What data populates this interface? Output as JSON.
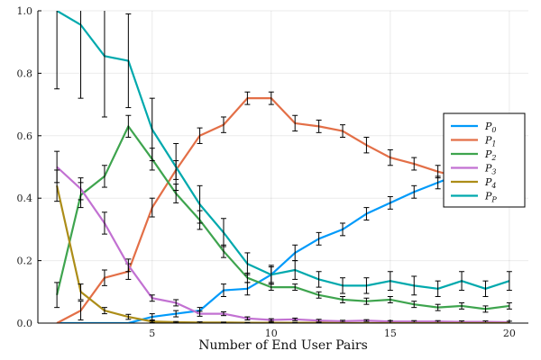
{
  "chart_data": {
    "type": "line",
    "title": "",
    "xlabel": "Number of End User Pairs",
    "ylabel": "",
    "xlim": [
      0.2,
      20.8
    ],
    "ylim": [
      0,
      1
    ],
    "xticks": [
      5,
      10,
      15,
      20
    ],
    "yticks": [
      0.0,
      0.2,
      0.4,
      0.6,
      0.8,
      1.0
    ],
    "ytick_labels": [
      "0.0",
      "0.2",
      "0.4",
      "0.6",
      "0.8",
      "1.0"
    ],
    "grid": true,
    "legend_position": "right",
    "x": [
      1,
      2,
      3,
      4,
      5,
      6,
      7,
      8,
      9,
      10,
      11,
      12,
      13,
      14,
      15,
      16,
      17,
      18,
      19,
      20
    ],
    "series": [
      {
        "name": "P",
        "sub": "0",
        "color": "#009AFA",
        "values": [
          0.0,
          0.0,
          0.0,
          0.0,
          0.02,
          0.03,
          0.04,
          0.105,
          0.11,
          0.155,
          0.225,
          0.27,
          0.3,
          0.35,
          0.385,
          0.42,
          0.45,
          0.48,
          0.505,
          0.535
        ],
        "errors": [
          0.0,
          0.0,
          0.0,
          0.0,
          0.01,
          0.01,
          0.01,
          0.02,
          0.02,
          0.025,
          0.025,
          0.02,
          0.02,
          0.02,
          0.02,
          0.02,
          0.02,
          0.02,
          0.02,
          0.015
        ]
      },
      {
        "name": "P",
        "sub": "1",
        "color": "#E36F47",
        "values": [
          0.0,
          0.04,
          0.145,
          0.165,
          0.37,
          0.49,
          0.6,
          0.635,
          0.72,
          0.72,
          0.64,
          0.63,
          0.615,
          0.57,
          0.53,
          0.51,
          0.485,
          0.465,
          0.445,
          0.41
        ],
        "errors": [
          0.0,
          0.03,
          0.025,
          0.025,
          0.03,
          0.03,
          0.025,
          0.025,
          0.02,
          0.02,
          0.025,
          0.02,
          0.02,
          0.025,
          0.025,
          0.02,
          0.02,
          0.02,
          0.02,
          0.02
        ]
      },
      {
        "name": "P",
        "sub": "2",
        "color": "#3EA44E",
        "values": [
          0.09,
          0.41,
          0.47,
          0.63,
          0.525,
          0.415,
          0.33,
          0.23,
          0.145,
          0.115,
          0.115,
          0.09,
          0.075,
          0.07,
          0.075,
          0.06,
          0.05,
          0.055,
          0.045,
          0.055
        ],
        "errors": [
          0.04,
          0.04,
          0.035,
          0.035,
          0.035,
          0.03,
          0.03,
          0.02,
          0.015,
          0.01,
          0.01,
          0.01,
          0.01,
          0.01,
          0.01,
          0.01,
          0.01,
          0.01,
          0.01,
          0.01
        ]
      },
      {
        "name": "P",
        "sub": "3",
        "color": "#C271D2",
        "values": [
          0.5,
          0.43,
          0.32,
          0.185,
          0.08,
          0.065,
          0.03,
          0.03,
          0.015,
          0.01,
          0.012,
          0.008,
          0.006,
          0.008,
          0.005,
          0.005,
          0.005,
          0.004,
          0.004,
          0.003
        ],
        "errors": [
          0.05,
          0.035,
          0.035,
          0.02,
          0.01,
          0.01,
          0.008,
          0.006,
          0.005,
          0.004,
          0.004,
          0.004,
          0.003,
          0.003,
          0.003,
          0.003,
          0.003,
          0.003,
          0.003,
          0.003
        ]
      },
      {
        "name": "P",
        "sub": "4",
        "color": "#AC8D18",
        "values": [
          0.44,
          0.1,
          0.04,
          0.02,
          0.005,
          0.003,
          0.002,
          0.002,
          0.001,
          0.001,
          0.001,
          0.001,
          0.0,
          0.0,
          0.0,
          0.0,
          0.0,
          0.0,
          0.0,
          0.0
        ],
        "errors": [
          0.05,
          0.025,
          0.01,
          0.008,
          0.003,
          0.002,
          0.002,
          0.001,
          0.001,
          0.001,
          0.001,
          0.001,
          0.0,
          0.0,
          0.0,
          0.0,
          0.0,
          0.0,
          0.0,
          0.0
        ]
      },
      {
        "name": "P",
        "sub": "P",
        "color": "#00A9AD",
        "values": [
          1.0,
          0.955,
          0.855,
          0.84,
          0.62,
          0.5,
          0.38,
          0.29,
          0.19,
          0.155,
          0.17,
          0.14,
          0.12,
          0.12,
          0.135,
          0.12,
          0.11,
          0.135,
          0.11,
          0.135
        ],
        "errors": [
          0.25,
          0.235,
          0.195,
          0.15,
          0.1,
          0.075,
          0.06,
          0.045,
          0.035,
          0.03,
          0.03,
          0.025,
          0.025,
          0.025,
          0.03,
          0.03,
          0.025,
          0.03,
          0.025,
          0.03
        ]
      }
    ]
  }
}
